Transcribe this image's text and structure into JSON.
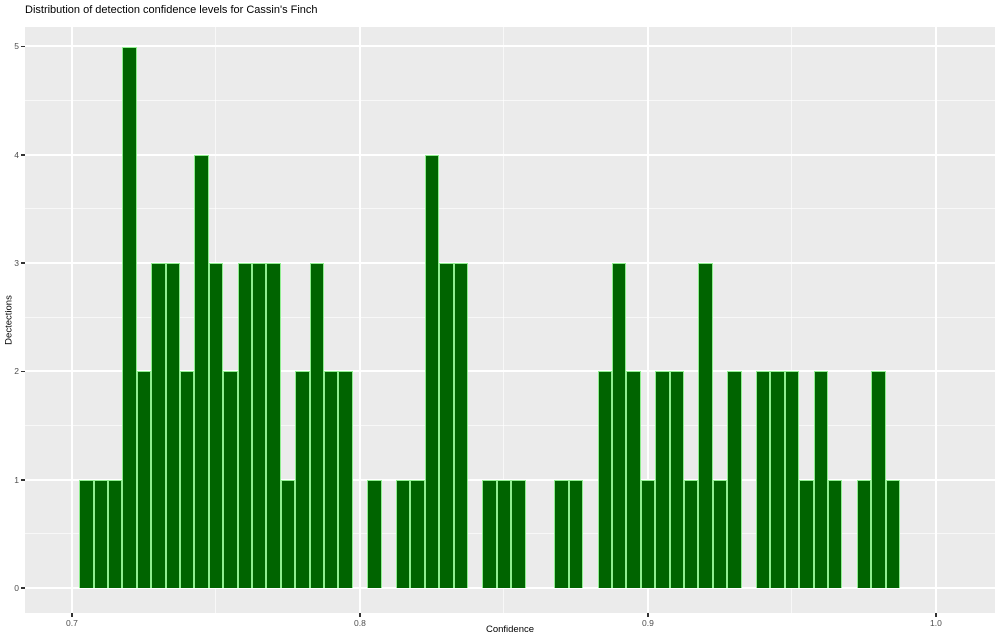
{
  "figure": {
    "title": "Distribution of detection confidence levels for Cassin's Finch"
  },
  "chart_data": {
    "type": "bar",
    "subtype": "histogram",
    "title": "Distribution of detection confidence levels for Cassin's Finch",
    "xlabel": "Confidence",
    "ylabel": "Dectections",
    "legend": null,
    "grid": true,
    "xlim": [
      0.6837,
      1.0205
    ],
    "ylim": [
      -0.23,
      5.18
    ],
    "x_ticks": {
      "values": [
        0.7,
        0.8,
        0.9,
        1.0
      ],
      "labels": [
        "0.7",
        "0.8",
        "0.9",
        "1.0"
      ]
    },
    "y_ticks": {
      "values": [
        0,
        1,
        2,
        3,
        4,
        5
      ],
      "labels": [
        "0",
        "1",
        "2",
        "3",
        "4",
        "5"
      ]
    },
    "x_minor": [
      0.75,
      0.85,
      0.95
    ],
    "y_minor": [
      0.5,
      1.5,
      2.5,
      3.5,
      4.5
    ],
    "bins": {
      "start": 0.7025,
      "width": 0.005,
      "counts": [
        1,
        1,
        1,
        5,
        2,
        3,
        3,
        2,
        4,
        3,
        2,
        3,
        3,
        3,
        1,
        2,
        3,
        2,
        2,
        0,
        1,
        0,
        1,
        1,
        4,
        3,
        3,
        0,
        1,
        1,
        1,
        0,
        0,
        1,
        1,
        0,
        2,
        3,
        2,
        1,
        2,
        2,
        1,
        3,
        1,
        2,
        0,
        2,
        2,
        2,
        1,
        2,
        1,
        0,
        1,
        2,
        1
      ]
    },
    "total_detections": 97,
    "colors": {
      "bar_fill": "#006400",
      "bar_edge": "#90EE90",
      "panel_bg": "#EBEBEB",
      "grid_major": "#FFFFFF",
      "grid_minor": "#FFFFFF",
      "tick_label": "#4D4D4D",
      "axis_text": "#000000"
    }
  }
}
